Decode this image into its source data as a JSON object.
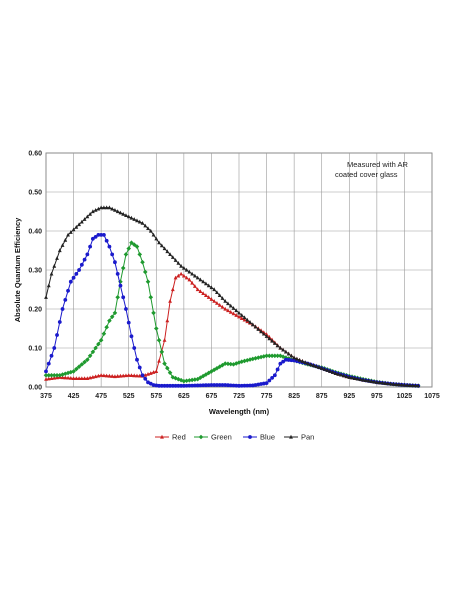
{
  "chart_data": {
    "type": "line",
    "annotation_lines": [
      "Measured with AR",
      "coated cover glass"
    ],
    "xlabel": "Wavelength (nm)",
    "ylabel": "Absolute Quantum Efficiency",
    "xlim": [
      375,
      1075
    ],
    "ylim": [
      0,
      0.6
    ],
    "x_ticks": [
      "375",
      "425",
      "475",
      "525",
      "575",
      "625",
      "675",
      "725",
      "775",
      "825",
      "875",
      "925",
      "975",
      "1025",
      "1075"
    ],
    "y_ticks": [
      "0.00",
      "0.10",
      "0.20",
      "0.30",
      "0.40",
      "0.50",
      "0.60"
    ],
    "grid": true,
    "legend_position": "bottom",
    "series": [
      {
        "name": "Red",
        "color": "#cc2020",
        "marker": "triangle",
        "x": [
          375,
          400,
          425,
          450,
          475,
          500,
          525,
          550,
          575,
          590,
          600,
          610,
          620,
          635,
          650,
          675,
          700,
          725,
          750,
          775,
          800,
          825,
          850,
          875,
          900,
          925,
          950,
          975,
          1000,
          1025,
          1050
        ],
        "y": [
          0.02,
          0.025,
          0.022,
          0.022,
          0.03,
          0.027,
          0.03,
          0.028,
          0.04,
          0.12,
          0.22,
          0.28,
          0.29,
          0.275,
          0.25,
          0.225,
          0.2,
          0.18,
          0.16,
          0.135,
          0.1,
          0.075,
          0.06,
          0.05,
          0.035,
          0.025,
          0.018,
          0.012,
          0.008,
          0.005,
          0.003
        ]
      },
      {
        "name": "Green",
        "color": "#1f9a2f",
        "marker": "diamond",
        "x": [
          375,
          400,
          425,
          450,
          475,
          490,
          500,
          510,
          520,
          530,
          540,
          550,
          560,
          575,
          590,
          605,
          625,
          650,
          675,
          700,
          715,
          730,
          750,
          775,
          800,
          825,
          850,
          875,
          900,
          925,
          950,
          975,
          1000,
          1025,
          1050
        ],
        "y": [
          0.03,
          0.03,
          0.04,
          0.07,
          0.12,
          0.17,
          0.19,
          0.27,
          0.34,
          0.37,
          0.36,
          0.32,
          0.27,
          0.15,
          0.06,
          0.025,
          0.015,
          0.02,
          0.04,
          0.06,
          0.058,
          0.065,
          0.072,
          0.08,
          0.08,
          0.068,
          0.058,
          0.05,
          0.038,
          0.028,
          0.02,
          0.013,
          0.008,
          0.005,
          0.003
        ]
      },
      {
        "name": "Blue",
        "color": "#1a1acc",
        "marker": "circle",
        "x": [
          375,
          390,
          405,
          420,
          435,
          450,
          460,
          470,
          480,
          490,
          500,
          510,
          520,
          530,
          540,
          550,
          560,
          570,
          580,
          600,
          625,
          650,
          675,
          700,
          725,
          750,
          775,
          790,
          800,
          810,
          825,
          850,
          875,
          900,
          925,
          950,
          975,
          1000,
          1025,
          1050
        ],
        "y": [
          0.04,
          0.1,
          0.2,
          0.27,
          0.3,
          0.34,
          0.38,
          0.39,
          0.39,
          0.36,
          0.32,
          0.26,
          0.2,
          0.13,
          0.07,
          0.03,
          0.012,
          0.005,
          0.003,
          0.003,
          0.003,
          0.004,
          0.005,
          0.005,
          0.003,
          0.004,
          0.01,
          0.03,
          0.06,
          0.07,
          0.068,
          0.06,
          0.048,
          0.036,
          0.026,
          0.018,
          0.012,
          0.008,
          0.005,
          0.003
        ]
      },
      {
        "name": "Pan",
        "color": "#222222",
        "marker": "triangle",
        "x": [
          375,
          385,
          400,
          415,
          430,
          445,
          460,
          475,
          490,
          505,
          520,
          535,
          550,
          565,
          580,
          600,
          620,
          640,
          660,
          680,
          700,
          725,
          750,
          775,
          800,
          825,
          850,
          875,
          900,
          925,
          950,
          975,
          1000,
          1025,
          1050
        ],
        "y": [
          0.23,
          0.29,
          0.35,
          0.39,
          0.41,
          0.43,
          0.45,
          0.46,
          0.46,
          0.45,
          0.44,
          0.43,
          0.42,
          0.4,
          0.37,
          0.34,
          0.31,
          0.29,
          0.27,
          0.25,
          0.22,
          0.19,
          0.16,
          0.13,
          0.1,
          0.075,
          0.06,
          0.048,
          0.035,
          0.025,
          0.018,
          0.012,
          0.008,
          0.005,
          0.003
        ]
      }
    ]
  }
}
